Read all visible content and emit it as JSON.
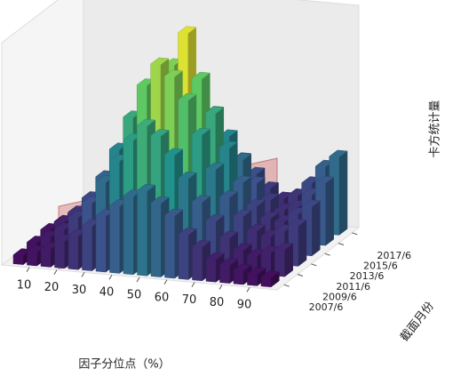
{
  "chart_data": {
    "type": "bar3d",
    "xlabel": "因子分位点（%）",
    "ylabel": "截面月份",
    "zlabel": "卡方统计量",
    "x": [
      5,
      10,
      15,
      20,
      25,
      30,
      35,
      40,
      45,
      50,
      55,
      60,
      65,
      70,
      75,
      80,
      85,
      90,
      95
    ],
    "xlim": [
      0,
      100
    ],
    "xticks": [
      10,
      20,
      30,
      40,
      50,
      60,
      70,
      80,
      90
    ],
    "categories": [
      "2007/6",
      "2009/6",
      "2011/6",
      "2013/6",
      "2015/6",
      "2017/6"
    ],
    "zlim": [
      0,
      100
    ],
    "colormap": "viridis",
    "series": [
      {
        "values": [
          4,
          6,
          8,
          12,
          15,
          20,
          25,
          30,
          35,
          38,
          33,
          28,
          20,
          15,
          10,
          8,
          6,
          5,
          4
        ]
      },
      {
        "values": [
          5,
          8,
          12,
          18,
          25,
          35,
          45,
          55,
          62,
          58,
          50,
          40,
          30,
          22,
          15,
          10,
          8,
          10,
          12
        ]
      },
      {
        "values": [
          6,
          10,
          15,
          22,
          32,
          45,
          60,
          75,
          85,
          80,
          70,
          55,
          40,
          28,
          20,
          14,
          12,
          15,
          18
        ]
      },
      {
        "values": [
          5,
          9,
          14,
          20,
          30,
          42,
          55,
          70,
          80,
          95,
          75,
          60,
          45,
          30,
          20,
          15,
          14,
          18,
          22
        ]
      },
      {
        "values": [
          4,
          7,
          10,
          15,
          22,
          30,
          40,
          52,
          60,
          65,
          55,
          45,
          35,
          25,
          18,
          14,
          16,
          22,
          28
        ]
      },
      {
        "values": [
          3,
          5,
          8,
          10,
          14,
          20,
          26,
          32,
          36,
          40,
          35,
          30,
          24,
          18,
          14,
          16,
          22,
          30,
          35
        ]
      }
    ]
  }
}
